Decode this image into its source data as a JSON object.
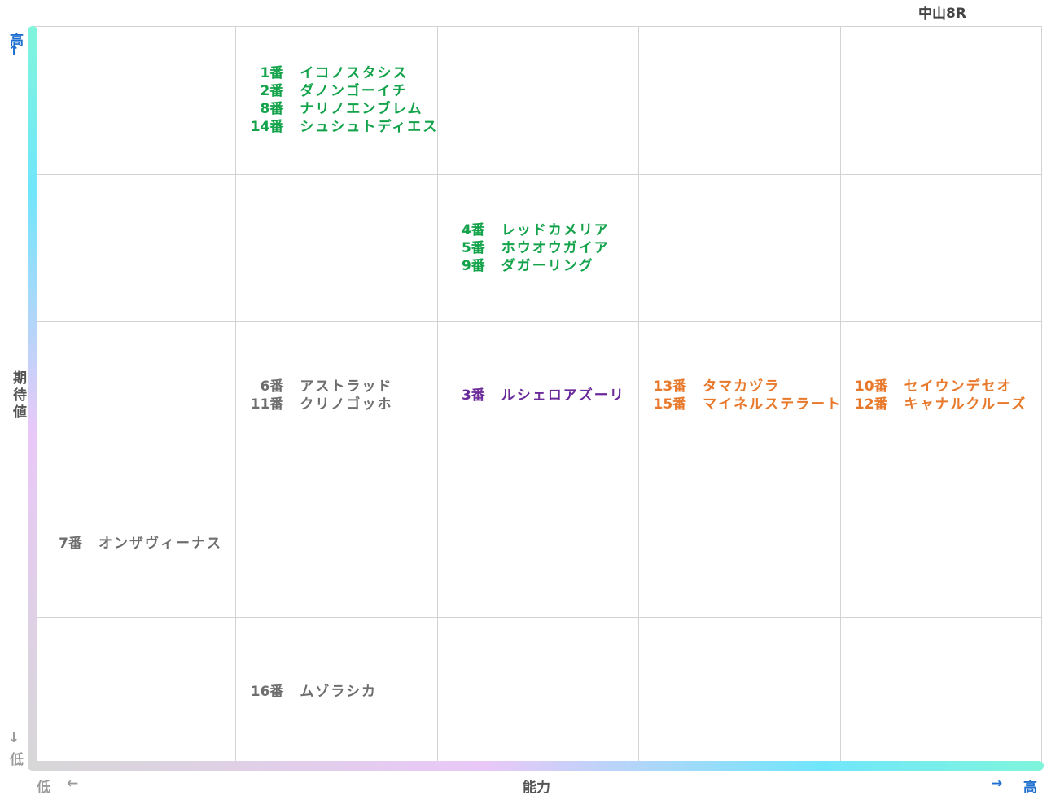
{
  "title": "中山8R",
  "axes": {
    "y_label": "期待値",
    "x_label": "能力",
    "high": "高",
    "low": "低",
    "arrow_up": "↑",
    "arrow_down": "↓",
    "arrow_right": "→",
    "arrow_left": "←"
  },
  "colors": {
    "green": "#12a34a",
    "gray": "#6e6e6e",
    "purple": "#6a2a9a",
    "orange": "#e8782a",
    "high_label": "#1e6fd0",
    "low_label": "#9a9a9a",
    "gradient": [
      "#d7d7d7",
      "#e9c8f8",
      "#70e6fb",
      "#7ff5dc"
    ]
  },
  "chart_data": {
    "type": "table",
    "x_axis": "能力",
    "y_axis": "期待値",
    "columns": 5,
    "rows": 5,
    "cells": [
      {
        "row": 1,
        "col": 2,
        "color": "green",
        "entries": [
          {
            "num": "1番",
            "name": "イコノスタシス"
          },
          {
            "num": "2番",
            "name": "ダノンゴーイチ"
          },
          {
            "num": "8番",
            "name": "ナリノエンブレム"
          },
          {
            "num": "14番",
            "name": "シュシュトディエス"
          }
        ]
      },
      {
        "row": 2,
        "col": 3,
        "color": "green",
        "entries": [
          {
            "num": "4番",
            "name": "レッドカメリア"
          },
          {
            "num": "5番",
            "name": "ホウオウガイア"
          },
          {
            "num": "9番",
            "name": "ダガーリング"
          }
        ]
      },
      {
        "row": 3,
        "col": 2,
        "color": "gray",
        "entries": [
          {
            "num": "6番",
            "name": "アストラッド"
          },
          {
            "num": "11番",
            "name": "クリノゴッホ"
          }
        ]
      },
      {
        "row": 3,
        "col": 3,
        "color": "purple",
        "entries": [
          {
            "num": "3番",
            "name": "ルシェロアズーリ"
          }
        ]
      },
      {
        "row": 3,
        "col": 4,
        "color": "orange",
        "entries": [
          {
            "num": "13番",
            "name": "タマカヅラ"
          },
          {
            "num": "15番",
            "name": "マイネルステラート"
          }
        ]
      },
      {
        "row": 3,
        "col": 5,
        "color": "orange",
        "entries": [
          {
            "num": "10番",
            "name": "セイウンデセオ"
          },
          {
            "num": "12番",
            "name": "キャナルクルーズ"
          }
        ]
      },
      {
        "row": 4,
        "col": 1,
        "color": "gray",
        "entries": [
          {
            "num": "7番",
            "name": "オンザヴィーナス"
          }
        ]
      },
      {
        "row": 5,
        "col": 2,
        "color": "gray",
        "entries": [
          {
            "num": "16番",
            "name": "ムゾラシカ"
          }
        ]
      }
    ]
  }
}
